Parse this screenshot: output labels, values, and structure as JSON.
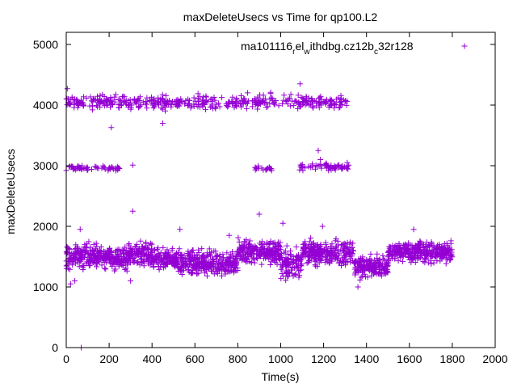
{
  "chart_data": {
    "type": "scatter",
    "title": "maxDeleteUsecs vs Time for qp100.L2",
    "xlabel": "Time(s)",
    "ylabel": "maxDeleteUsecs",
    "xlim": [
      0,
      2000
    ],
    "ylim": [
      0,
      5200
    ],
    "xticks": [
      0,
      200,
      400,
      600,
      800,
      1000,
      1200,
      1400,
      1600,
      1800,
      2000
    ],
    "yticks": [
      0,
      1000,
      2000,
      3000,
      4000,
      5000
    ],
    "marker": "+",
    "color": "#9400d3",
    "legend": {
      "position": "top-right",
      "label_main": "ma101116",
      "label_sub1": "r",
      "label_mid": "el",
      "label_sub2": "w",
      "label_end": "ithdbg.cz12b",
      "label_sub3": "c",
      "label_tail": "32r128"
    },
    "series": [
      {
        "name": "ma101116_rel_withdbg.cz12b_c32r128",
        "bands": [
          {
            "x_range": [
              0,
              300
            ],
            "y_center": 1500,
            "y_spread": 200
          },
          {
            "x_range": [
              300,
              400
            ],
            "y_center": 1550,
            "y_spread": 200
          },
          {
            "x_range": [
              400,
              520
            ],
            "y_center": 1450,
            "y_spread": 170
          },
          {
            "x_range": [
              520,
              800
            ],
            "y_center": 1400,
            "y_spread": 200
          },
          {
            "x_range": [
              800,
              1000
            ],
            "y_center": 1580,
            "y_spread": 220
          },
          {
            "x_range": [
              1000,
              1100
            ],
            "y_center": 1380,
            "y_spread": 220
          },
          {
            "x_range": [
              1100,
              1340
            ],
            "y_center": 1570,
            "y_spread": 200
          },
          {
            "x_range": [
              1340,
              1500
            ],
            "y_center": 1320,
            "y_spread": 170
          },
          {
            "x_range": [
              1500,
              1800
            ],
            "y_center": 1580,
            "y_spread": 170
          },
          {
            "x_range": [
              0,
              1320
            ],
            "y_center": 4050,
            "y_spread": 120
          },
          {
            "x_range": [
              0,
              250
            ],
            "y_center": 2960,
            "y_spread": 40
          },
          {
            "x_range": [
              880,
              960
            ],
            "y_center": 2950,
            "y_spread": 40
          },
          {
            "x_range": [
              1080,
              1320
            ],
            "y_center": 2980,
            "y_spread": 60
          }
        ],
        "outliers": [
          [
            5,
            4270
          ],
          [
            70,
            0
          ],
          [
            210,
            3630
          ],
          [
            310,
            3010
          ],
          [
            310,
            2250
          ],
          [
            450,
            3700
          ],
          [
            530,
            1950
          ],
          [
            760,
            1850
          ],
          [
            900,
            2200
          ],
          [
            1010,
            2050
          ],
          [
            1090,
            4350
          ],
          [
            1175,
            3250
          ],
          [
            1185,
            3100
          ],
          [
            1310,
            3050
          ],
          [
            1195,
            2000
          ],
          [
            1280,
            4000
          ],
          [
            20,
            1050
          ],
          [
            40,
            1100
          ],
          [
            65,
            1950
          ],
          [
            300,
            1100
          ],
          [
            1360,
            1000
          ],
          [
            1620,
            1950
          ]
        ]
      }
    ]
  }
}
